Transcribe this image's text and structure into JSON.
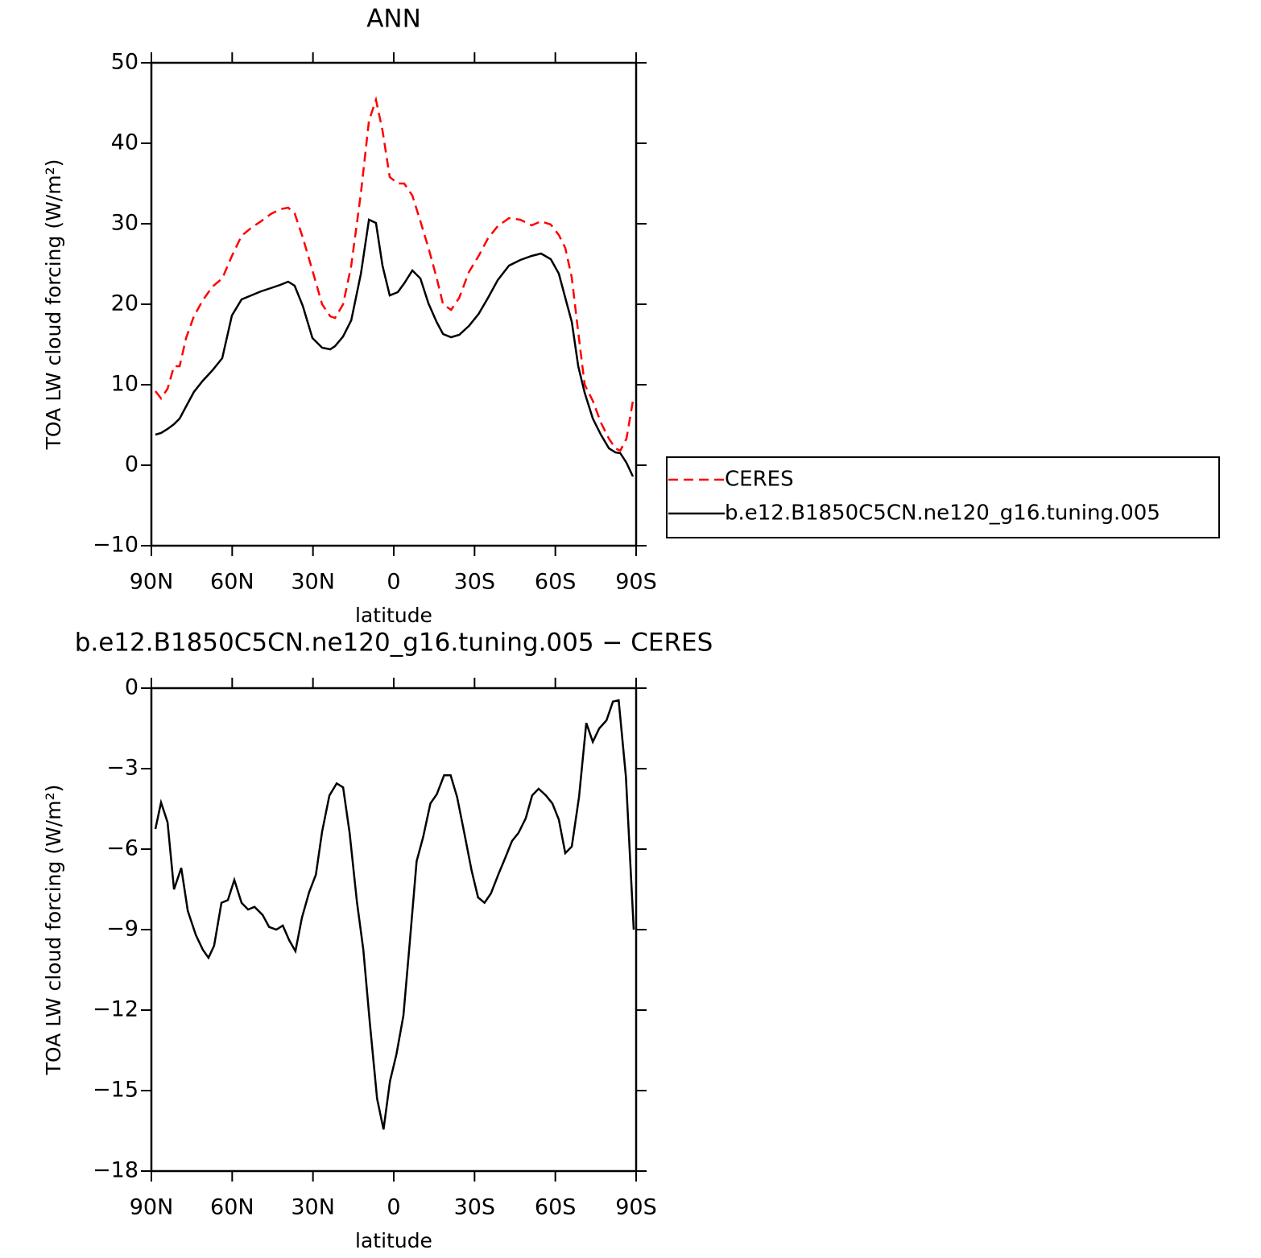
{
  "chart_data": [
    {
      "type": "line",
      "title": "ANN",
      "x_label": "latitude",
      "y_label": "TOA LW cloud forcing (W/m²)",
      "xlim": [
        90,
        -90
      ],
      "xticks": [
        {
          "value": 90,
          "label": "90N"
        },
        {
          "value": 60,
          "label": "60N"
        },
        {
          "value": 30,
          "label": "30N"
        },
        0,
        {
          "value": -30,
          "label": "30S"
        },
        {
          "value": -60,
          "label": "60S"
        },
        {
          "value": -90,
          "label": "90S"
        }
      ],
      "ylim": [
        -10,
        50
      ],
      "yticks": [
        {
          "value": -10,
          "label": "−10"
        },
        0,
        10,
        20,
        30,
        40,
        50
      ],
      "legend": "right",
      "x": [
        88.5,
        86.4,
        84.0,
        81.6,
        79.5,
        77.1,
        74.2,
        70.9,
        67.3,
        63.7,
        60.1,
        56.5,
        52.9,
        49.3,
        45.7,
        42.2,
        39.2,
        36.8,
        33.8,
        30.2,
        26.6,
        23.6,
        21.8,
        18.8,
        15.8,
        12.2,
        9.2,
        6.6,
        4.2,
        1.5,
        -1.5,
        -3.9,
        -6.9,
        -9.9,
        -12.9,
        -15.9,
        -18.3,
        -21.3,
        -24.3,
        -27.9,
        -31.5,
        -35.0,
        -38.6,
        -42.8,
        -47.0,
        -51.2,
        -54.7,
        -58.3,
        -61.3,
        -63.7,
        -66.1,
        -68.5,
        -70.9,
        -73.9,
        -76.9,
        -79.9,
        -82.3,
        -84.1,
        -86.4,
        -88.8
      ],
      "series": [
        {
          "name": "CERES",
          "color": "#ff0000",
          "line_style": "dashed",
          "values": [
            9.2,
            8.3,
            9.5,
            12.3,
            12.3,
            15.8,
            18.5,
            20.5,
            22.2,
            23.2,
            26.0,
            28.5,
            29.5,
            30.3,
            31.2,
            31.8,
            32.0,
            31.3,
            28.3,
            24.2,
            20.0,
            18.5,
            18.3,
            20.0,
            24.8,
            33.8,
            42.8,
            45.4,
            41.6,
            35.8,
            35.0,
            35.0,
            33.5,
            30.3,
            27.0,
            23.3,
            20.0,
            19.3,
            20.8,
            24.0,
            26.0,
            28.2,
            29.7,
            30.7,
            30.5,
            29.8,
            30.3,
            29.9,
            28.6,
            27.0,
            23.3,
            16.5,
            10.0,
            8.0,
            5.3,
            3.3,
            2.1,
            1.8,
            3.3,
            8.0
          ]
        },
        {
          "name": "b.e12.B1850C5CN.ne120_g16.tuning.005",
          "color": "#000000",
          "line_style": "solid",
          "values": [
            3.8,
            4.0,
            4.5,
            5.1,
            5.8,
            7.3,
            9.1,
            10.5,
            11.8,
            13.3,
            18.6,
            20.6,
            21.1,
            21.6,
            22.0,
            22.4,
            22.8,
            22.3,
            19.8,
            15.8,
            14.6,
            14.4,
            14.8,
            16.0,
            18.0,
            23.8,
            30.5,
            30.1,
            24.8,
            21.1,
            21.5,
            22.6,
            24.2,
            23.2,
            20.1,
            17.8,
            16.3,
            15.9,
            16.2,
            17.3,
            18.8,
            20.8,
            23.0,
            24.8,
            25.5,
            26.0,
            26.3,
            25.6,
            23.8,
            20.8,
            17.8,
            12.3,
            9.0,
            5.8,
            3.8,
            2.1,
            1.6,
            1.5,
            0.3,
            -1.4
          ]
        }
      ]
    },
    {
      "type": "line",
      "title": "b.e12.B1850C5CN.ne120_g16.tuning.005 − CERES",
      "x_label": "latitude",
      "y_label": "TOA LW cloud forcing (W/m²)",
      "xlim": [
        90,
        -90
      ],
      "xticks": [
        {
          "value": 90,
          "label": "90N"
        },
        {
          "value": 60,
          "label": "60N"
        },
        {
          "value": 30,
          "label": "30N"
        },
        0,
        {
          "value": -30,
          "label": "30S"
        },
        {
          "value": -60,
          "label": "60S"
        },
        {
          "value": -90,
          "label": "90S"
        }
      ],
      "ylim": [
        -18,
        0
      ],
      "yticks": [
        {
          "value": -18,
          "label": "−18"
        },
        {
          "value": -15,
          "label": "−15"
        },
        {
          "value": -12,
          "label": "−12"
        },
        {
          "value": -9,
          "label": "−9"
        },
        {
          "value": -6,
          "label": "−6"
        },
        {
          "value": -3,
          "label": "−3"
        },
        0
      ],
      "color": "#000000",
      "x": [
        88.5,
        86.4,
        84.0,
        81.6,
        78.9,
        76.5,
        73.5,
        70.9,
        68.8,
        66.7,
        64.0,
        61.6,
        59.2,
        56.5,
        54.1,
        51.7,
        48.7,
        46.3,
        43.6,
        41.2,
        38.8,
        36.5,
        34.1,
        31.4,
        28.9,
        26.6,
        23.9,
        21.2,
        18.8,
        16.4,
        13.7,
        11.3,
        8.9,
        6.2,
        3.8,
        1.4,
        -1.0,
        -3.6,
        -6.0,
        -8.5,
        -10.9,
        -13.6,
        -16.0,
        -18.7,
        -21.1,
        -23.5,
        -26.2,
        -28.9,
        -31.3,
        -33.7,
        -36.1,
        -38.8,
        -41.5,
        -43.9,
        -46.3,
        -49.0,
        -51.4,
        -53.8,
        -56.5,
        -58.9,
        -61.3,
        -63.7,
        -66.1,
        -68.8,
        -71.5,
        -73.9,
        -76.3,
        -79.0,
        -81.4,
        -83.5,
        -86.2,
        -89.1
      ],
      "values": [
        -5.25,
        -4.26,
        -5.0,
        -7.5,
        -6.7,
        -8.3,
        -9.2,
        -9.75,
        -10.05,
        -9.6,
        -8.0,
        -7.9,
        -7.15,
        -8.0,
        -8.25,
        -8.15,
        -8.45,
        -8.9,
        -9.0,
        -8.85,
        -9.4,
        -9.8,
        -8.55,
        -7.6,
        -6.95,
        -5.35,
        -4.0,
        -3.55,
        -3.7,
        -5.4,
        -7.95,
        -9.75,
        -12.45,
        -15.3,
        -16.45,
        -14.65,
        -13.65,
        -12.2,
        -9.4,
        -6.45,
        -5.55,
        -4.3,
        -3.95,
        -3.25,
        -3.25,
        -4.05,
        -5.4,
        -6.8,
        -7.8,
        -8.0,
        -7.65,
        -6.95,
        -6.3,
        -5.7,
        -5.4,
        -4.85,
        -4.0,
        -3.75,
        -4.0,
        -4.3,
        -4.9,
        -6.15,
        -5.9,
        -4.05,
        -1.3,
        -2.0,
        -1.5,
        -1.2,
        -0.5,
        -0.45,
        -3.3,
        -9.0
      ]
    }
  ]
}
